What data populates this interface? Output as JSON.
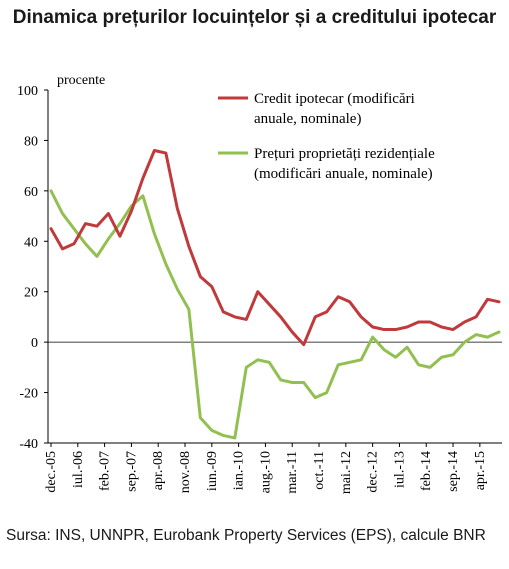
{
  "chart_data": {
    "type": "line",
    "title": "Dinamica prețurilor locuințelor și a creditului ipotecar",
    "ylabel": "procente",
    "ylim": [
      -40,
      100
    ],
    "yticks": [
      -40,
      -20,
      0,
      20,
      40,
      60,
      80,
      100
    ],
    "x_tick_labels": [
      "dec.-05",
      "iul.-06",
      "feb.-07",
      "sep.-07",
      "apr.-08",
      "nov.-08",
      "iun.-09",
      "ian.-10",
      "aug.-10",
      "mar.-11",
      "oct.-11",
      "mai.-12",
      "dec.-12",
      "iul.-13",
      "feb.-14",
      "sep.-14",
      "apr.-15"
    ],
    "x": [
      "2005-12",
      "2006-03",
      "2006-06",
      "2006-09",
      "2006-12",
      "2007-03",
      "2007-06",
      "2007-09",
      "2007-12",
      "2008-03",
      "2008-06",
      "2008-09",
      "2008-12",
      "2009-03",
      "2009-06",
      "2009-09",
      "2009-12",
      "2010-03",
      "2010-06",
      "2010-09",
      "2010-12",
      "2011-03",
      "2011-06",
      "2011-09",
      "2011-12",
      "2012-03",
      "2012-06",
      "2012-09",
      "2012-12",
      "2013-03",
      "2013-06",
      "2013-09",
      "2013-12",
      "2014-03",
      "2014-06",
      "2014-09",
      "2014-12",
      "2015-03",
      "2015-06",
      "2015-09"
    ],
    "series": [
      {
        "name": "Credit ipotecar (modificări anuale, nominale)",
        "color": "#c0393b",
        "values": [
          45,
          37,
          39,
          47,
          46,
          51,
          42,
          52,
          65,
          76,
          75,
          53,
          38,
          26,
          22,
          12,
          10,
          9,
          20,
          15,
          10,
          4,
          -1,
          10,
          12,
          18,
          16,
          10,
          6,
          5,
          5,
          6,
          8,
          8,
          6,
          5,
          8,
          10,
          17,
          16
        ]
      },
      {
        "name": "Prețuri proprietăți rezidențiale (modificări anuale, nominale)",
        "color": "#92c050",
        "values": [
          60,
          51,
          45,
          39,
          34,
          41,
          47,
          54,
          58,
          43,
          31,
          21,
          13,
          -30,
          -35,
          -37,
          -38,
          -10,
          -7,
          -8,
          -15,
          -16,
          -16,
          -22,
          -20,
          -9,
          -8,
          -7,
          2,
          -3,
          -6,
          -2,
          -9,
          -10,
          -6,
          -5,
          0,
          3,
          2,
          4
        ]
      }
    ],
    "legend_position": "top-right"
  },
  "source_text": "Sursa: INS, UNNPR, Eurobank Property Services (EPS), calcule BNR"
}
